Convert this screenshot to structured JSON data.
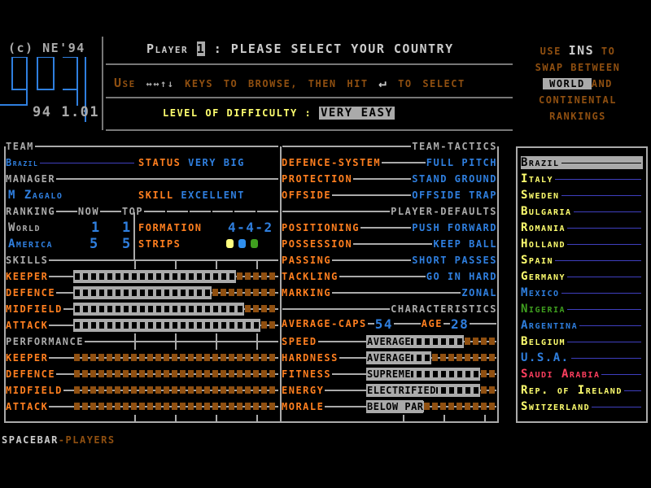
{
  "colors": {
    "orange": "#ff7f1f",
    "blue": "#2f7fdf",
    "gray": "#aaaaaa",
    "brown": "#8f4f10",
    "yellow": "#ffff6f",
    "green": "#3f9f1f",
    "red": "#ff3f5f"
  },
  "logo": {
    "copyright": "(c) NE'94",
    "title": "909",
    "version": "94 1.01"
  },
  "header": {
    "player_prefix": "Player",
    "player_number": "1",
    "prompt": ": PLEASE SELECT YOUR COUNTRY",
    "help_use": "Use",
    "help_arrows": "↔↔↑↓",
    "help_text": "KEYS TO BROWSE, THEN HIT",
    "enter_icon": "↵",
    "help_select": "TO SELECT",
    "difficulty_label": "LEVEL OF DIFFICULTY :",
    "difficulty_value": "VERY EASY"
  },
  "rankings_help": {
    "line1_a": "USE",
    "line1_key": "INS",
    "line1_b": "TO",
    "line2": "SWAP BETWEEN",
    "world": "WORLD",
    "and": "AND",
    "line4": "CONTINENTAL",
    "line5": "RANKINGS"
  },
  "team": {
    "header": "TEAM",
    "name": "Brazil",
    "status_label": "STATUS",
    "status_value": "VERY BIG",
    "manager_header": "MANAGER",
    "manager": "M Zagalo",
    "skill_label": "SKILL",
    "skill_value": "EXCELLENT",
    "ranking_header": "RANKING",
    "now": "NOW",
    "top": "TOP",
    "world_label": "World",
    "world_now": "1",
    "world_top": "1",
    "america_label": "America",
    "america_now": "5",
    "america_top": "5",
    "formation_label": "FORMATION",
    "formation_value": "4-4-2",
    "strips_label": "STRIPS",
    "strips": [
      "#ffff7f",
      "#2f8fef",
      "#3f9f1f"
    ]
  },
  "skills": {
    "header": "SKILLS",
    "items": [
      {
        "label": "KEEPER",
        "level": 20
      },
      {
        "label": "DEFENCE",
        "level": 17
      },
      {
        "label": "MIDFIELD",
        "level": 21
      },
      {
        "label": "ATTACK",
        "level": 23
      }
    ],
    "max": 25
  },
  "performance": {
    "header": "PERFORMANCE",
    "items": [
      {
        "label": "KEEPER",
        "level": 0
      },
      {
        "label": "DEFENCE",
        "level": 0
      },
      {
        "label": "MIDFIELD",
        "level": 0
      },
      {
        "label": "ATTACK",
        "level": 0
      }
    ],
    "max": 25
  },
  "tactics": {
    "header": "TEAM-TACTICS",
    "items": [
      {
        "label": "DEFENCE-SYSTEM",
        "value": "FULL PITCH"
      },
      {
        "label": "PROTECTION",
        "value": "STAND GROUND"
      },
      {
        "label": "OFFSIDE",
        "value": "OFFSIDE TRAP"
      }
    ]
  },
  "defaults": {
    "header": "PLAYER-DEFAULTS",
    "items": [
      {
        "label": "POSITIONING",
        "value": "PUSH FORWARD"
      },
      {
        "label": "POSSESSION",
        "value": "KEEP BALL"
      },
      {
        "label": "PASSING",
        "value": "SHORT PASSES"
      },
      {
        "label": "TACKLING",
        "value": "GO IN HARD"
      },
      {
        "label": "MARKING",
        "value": "ZONAL"
      }
    ]
  },
  "characteristics": {
    "header": "CHARACTERISTICS",
    "caps_label": "AVERAGE-CAPS",
    "caps_value": "54",
    "age_label": "AGE",
    "age_value": "28",
    "max": 16,
    "items": [
      {
        "label": "SPEED",
        "value": "AVERAGE",
        "level": 12
      },
      {
        "label": "HARDNESS",
        "value": "AVERAGE",
        "level": 8
      },
      {
        "label": "FITNESS",
        "value": "SUPREME",
        "level": 14
      },
      {
        "label": "ENERGY",
        "value": "ELECTRIFIED",
        "level": 14
      },
      {
        "label": "MORALE",
        "value": "BELOW PAR",
        "level": 7
      }
    ]
  },
  "countries": [
    {
      "name": "Brazil",
      "color": "#000000",
      "selected": true
    },
    {
      "name": "Italy",
      "color": "#ffff6f"
    },
    {
      "name": "Sweden",
      "color": "#ffff6f"
    },
    {
      "name": "Bulgaria",
      "color": "#ffff6f"
    },
    {
      "name": "Romania",
      "color": "#ffff6f"
    },
    {
      "name": "Holland",
      "color": "#ffff6f"
    },
    {
      "name": "Spain",
      "color": "#ffff6f"
    },
    {
      "name": "Germany",
      "color": "#ffff6f"
    },
    {
      "name": "Mexico",
      "color": "#2f7fdf"
    },
    {
      "name": "Nigeria",
      "color": "#3f9f1f"
    },
    {
      "name": "Argentina",
      "color": "#2f7fdf"
    },
    {
      "name": "Belgium",
      "color": "#ffff6f"
    },
    {
      "name": "U.S.A.",
      "color": "#2f7fdf"
    },
    {
      "name": "Saudi Arabia",
      "color": "#ff3f5f"
    },
    {
      "name": "Rep. of Ireland",
      "color": "#ffff6f"
    },
    {
      "name": "Switzerland",
      "color": "#ffff6f"
    }
  ],
  "footer": {
    "key": "SPACEBAR",
    "action": "PLAYERS"
  }
}
